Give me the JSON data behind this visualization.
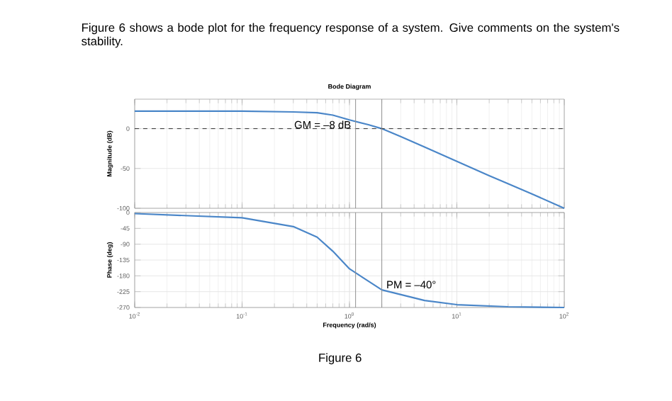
{
  "chart_data": [
    {
      "type": "line",
      "title": "Bode Diagram",
      "ylabel": "Magnitude (dB)",
      "log": "x",
      "x": [
        0.01,
        0.1,
        0.3,
        0.5,
        0.7,
        1,
        1.5,
        2,
        3,
        5,
        10,
        20,
        50,
        100
      ],
      "series": [
        {
          "color": "#4a86c8",
          "values": [
            22,
            22,
            21,
            20,
            17,
            11,
            5,
            0,
            -10,
            -23,
            -41,
            -59,
            -82,
            -100
          ]
        }
      ],
      "xlim": [
        0.01,
        100
      ],
      "ylim": [
        -100,
        37
      ],
      "xticks": [
        {
          "value": 0.01,
          "label": null
        },
        {
          "value": 0.1,
          "label": null
        },
        {
          "value": 1,
          "label": null
        },
        {
          "value": 10,
          "label": null
        },
        {
          "value": 100,
          "label": null
        }
      ],
      "yticks": [
        -100,
        -50,
        0
      ],
      "tick_labels": "y",
      "grid": true,
      "marker": "none",
      "line_style": "solid",
      "ref_lines": [
        {
          "axis": "y",
          "value": 0,
          "color": "#303030",
          "line_style": "dashed"
        },
        {
          "axis": "x",
          "value": 1.14,
          "color": "#909090"
        },
        {
          "axis": "x",
          "value": 2,
          "color": "#909090"
        }
      ],
      "annotations": [
        "Figure 6 shows a bode plot for the frequency response of a system. Give comments on the system's stability.",
        {
          "text": "GM = –8 dB",
          "x": 1.14,
          "y": 5
        }
      ]
    },
    {
      "type": "line",
      "xlabel": "Frequency (rad/s)",
      "ylabel": "Phase (deg)",
      "log": "x",
      "x": [
        0.01,
        0.1,
        0.3,
        0.5,
        0.7,
        1,
        2,
        5,
        10,
        30,
        100
      ],
      "series": [
        {
          "color": "#4a86c8",
          "values": [
            -3,
            -15,
            -40,
            -70,
            -110,
            -160,
            -220,
            -250,
            -262,
            -268,
            -270
          ]
        }
      ],
      "xlim": [
        0.01,
        100
      ],
      "ylim": [
        -270,
        0
      ],
      "xticks": [
        {
          "value": 0.01,
          "label": "10$^{-2}$"
        },
        {
          "value": 0.1,
          "label": "10$^{-1}$"
        },
        {
          "value": 1,
          "label": "10$^{0}$"
        },
        {
          "value": 10,
          "label": "10$^{1}$"
        },
        {
          "value": 100,
          "label": "10$^{2}$"
        }
      ],
      "yticks": [
        -270,
        -225,
        -180,
        -135,
        -90,
        -45,
        0
      ],
      "grid": true,
      "marker": "none",
      "line_style": "solid",
      "ref_lines": [
        {
          "axis": "x",
          "value": 1.14,
          "color": "#909090"
        },
        {
          "axis": "x",
          "value": 2,
          "color": "#909090"
        }
      ],
      "annotations": [
        {
          "text": "PM = –40°",
          "x": 2,
          "y": -205
        },
        "Figure 6"
      ]
    }
  ]
}
